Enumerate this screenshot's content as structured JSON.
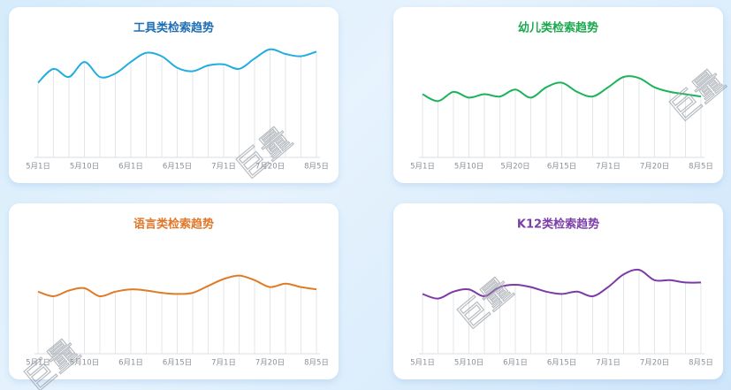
{
  "chart_data": [
    {
      "type": "line",
      "title": "工具类检索趋势",
      "title_color": "#1e6fb5",
      "color": "#22ade0",
      "categories": [
        "5月1日",
        null,
        null,
        "5月10日",
        null,
        null,
        "6月1日",
        null,
        null,
        "6月15日",
        null,
        null,
        "7月1日",
        null,
        null,
        "7月20日",
        null,
        null,
        "8月5日"
      ],
      "values": [
        65,
        77,
        70,
        83,
        70,
        73,
        83,
        91,
        88,
        78,
        75,
        80,
        81,
        77,
        86,
        94,
        90,
        88,
        92
      ],
      "ylim": [
        0,
        100
      ]
    },
    {
      "type": "line",
      "title": "幼儿类检索趋势",
      "title_color": "#1aa84f",
      "color": "#1db35a",
      "categories": [
        "5月1日",
        null,
        null,
        "5月10日",
        null,
        null,
        "5月20日",
        null,
        null,
        "6月15日",
        null,
        null,
        "7月1日",
        null,
        null,
        "7月20日",
        null,
        null,
        "8月5日"
      ],
      "values": [
        55,
        49,
        57,
        52,
        55,
        53,
        59,
        52,
        61,
        65,
        57,
        53,
        61,
        70,
        69,
        61,
        57,
        55,
        53
      ],
      "ylim": [
        0,
        100
      ]
    },
    {
      "type": "line",
      "title": "语言类检索趋势",
      "title_color": "#e0772a",
      "color": "#e07a25",
      "categories": [
        "5月1日",
        null,
        null,
        "5月10日",
        null,
        null,
        "6月1日",
        null,
        null,
        "6月15日",
        null,
        null,
        "7月1日",
        null,
        null,
        "7月20日",
        null,
        null,
        "8月5日"
      ],
      "values": [
        54,
        50,
        55,
        57,
        50,
        54,
        56,
        55,
        53,
        52,
        53,
        59,
        65,
        68,
        64,
        58,
        61,
        58,
        56
      ],
      "ylim": [
        0,
        100
      ]
    },
    {
      "type": "line",
      "title": "K12类检索趋势",
      "title_color": "#7b3fa8",
      "color": "#7c3aa6",
      "categories": [
        "5月1日",
        null,
        null,
        "5月10日",
        null,
        null,
        "6月1日",
        null,
        null,
        "6月15日",
        null,
        null,
        "7月1日",
        null,
        null,
        "7月20日",
        null,
        null,
        "8月5日"
      ],
      "values": [
        52,
        48,
        54,
        56,
        50,
        58,
        60,
        58,
        54,
        52,
        54,
        50,
        58,
        69,
        73,
        64,
        64,
        62,
        62
      ],
      "ylim": [
        0,
        100
      ]
    }
  ],
  "watermark": "巨量"
}
